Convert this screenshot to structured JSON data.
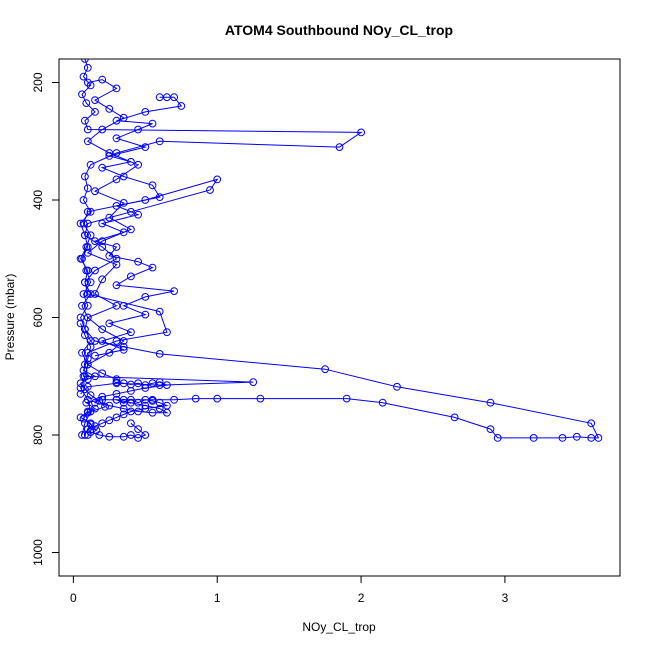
{
  "chart_data": {
    "type": "scatter",
    "title": "ATOM4 Southbound NOy_CL_trop",
    "xlabel": "NOy_CL_trop",
    "ylabel": "Pressure (mbar)",
    "xlim": [
      -0.1,
      3.8
    ],
    "ylim": [
      1040,
      160
    ],
    "y_reversed": true,
    "x_ticks": [
      0,
      1,
      2,
      3
    ],
    "y_ticks": [
      200,
      400,
      600,
      800,
      1000
    ],
    "marker": "open-circle",
    "line": true,
    "grid": false,
    "color": "#0000ff",
    "series": [
      {
        "points": [
          [
            0.08,
            800
          ],
          [
            0.1,
            790
          ],
          [
            0.12,
            780
          ],
          [
            0.05,
            770
          ],
          [
            0.1,
            760
          ],
          [
            0.15,
            755
          ],
          [
            0.09,
            745
          ],
          [
            0.2,
            740
          ],
          [
            0.35,
            740
          ],
          [
            0.55,
            740
          ],
          [
            0.7,
            740
          ],
          [
            0.85,
            738
          ],
          [
            1.0,
            738
          ],
          [
            1.3,
            738
          ],
          [
            1.9,
            738
          ],
          [
            2.15,
            745
          ],
          [
            2.65,
            770
          ],
          [
            2.9,
            790
          ],
          [
            2.95,
            805
          ],
          [
            3.2,
            805
          ],
          [
            3.4,
            805
          ],
          [
            3.5,
            803
          ],
          [
            3.6,
            805
          ],
          [
            3.65,
            805
          ],
          [
            3.6,
            780
          ],
          [
            2.9,
            745
          ],
          [
            2.25,
            718
          ],
          [
            1.75,
            688
          ],
          [
            0.6,
            662
          ],
          [
            0.35,
            650
          ],
          [
            0.15,
            640
          ],
          [
            0.08,
            620
          ],
          [
            0.1,
            600
          ],
          [
            0.06,
            580
          ],
          [
            0.12,
            560
          ],
          [
            0.08,
            540
          ],
          [
            0.1,
            520
          ],
          [
            0.05,
            500
          ],
          [
            0.09,
            480
          ],
          [
            0.12,
            460
          ],
          [
            0.07,
            440
          ],
          [
            0.1,
            420
          ],
          [
            0.5,
            400
          ],
          [
            1.0,
            365
          ],
          [
            0.95,
            383
          ],
          [
            0.4,
            420
          ],
          [
            0.1,
            440
          ],
          [
            0.08,
            460
          ],
          [
            0.2,
            480
          ],
          [
            0.3,
            500
          ],
          [
            0.15,
            520
          ],
          [
            0.08,
            540
          ],
          [
            0.1,
            560
          ],
          [
            0.6,
            590
          ],
          [
            0.65,
            625
          ],
          [
            0.3,
            640
          ],
          [
            0.1,
            660
          ],
          [
            0.08,
            680
          ],
          [
            0.07,
            700
          ],
          [
            1.25,
            710
          ],
          [
            0.6,
            715
          ],
          [
            0.3,
            712
          ],
          [
            0.1,
            718
          ],
          [
            0.05,
            730
          ]
        ]
      },
      {
        "points": [
          [
            0.08,
            160
          ],
          [
            0.1,
            175
          ],
          [
            0.07,
            190
          ],
          [
            0.12,
            205
          ],
          [
            0.06,
            220
          ],
          [
            0.09,
            235
          ],
          [
            0.15,
            250
          ],
          [
            0.08,
            265
          ],
          [
            0.1,
            280
          ],
          [
            2.0,
            285
          ],
          [
            1.85,
            310
          ],
          [
            0.6,
            300
          ],
          [
            0.3,
            320
          ],
          [
            0.12,
            340
          ],
          [
            0.08,
            360
          ],
          [
            0.1,
            380
          ],
          [
            0.07,
            400
          ],
          [
            0.12,
            420
          ],
          [
            0.05,
            440
          ],
          [
            0.08,
            460
          ],
          [
            0.1,
            480
          ],
          [
            0.06,
            500
          ],
          [
            0.09,
            520
          ],
          [
            0.12,
            540
          ],
          [
            0.07,
            560
          ],
          [
            0.1,
            580
          ],
          [
            0.05,
            600
          ],
          [
            0.08,
            620
          ],
          [
            0.12,
            640
          ],
          [
            0.06,
            660
          ],
          [
            0.1,
            680
          ],
          [
            0.08,
            700
          ],
          [
            0.05,
            720
          ],
          [
            0.1,
            740
          ],
          [
            0.12,
            760
          ],
          [
            0.08,
            780
          ],
          [
            0.06,
            800
          ]
        ]
      },
      {
        "points": [
          [
            0.6,
            225
          ],
          [
            0.65,
            225
          ],
          [
            0.7,
            225
          ],
          [
            0.75,
            240
          ],
          [
            0.5,
            250
          ],
          [
            0.3,
            265
          ],
          [
            0.55,
            270
          ],
          [
            0.45,
            280
          ],
          [
            0.3,
            295
          ],
          [
            0.5,
            310
          ],
          [
            0.25,
            325
          ],
          [
            0.4,
            335
          ],
          [
            0.2,
            345
          ],
          [
            0.35,
            360
          ],
          [
            0.55,
            375
          ],
          [
            0.6,
            395
          ],
          [
            0.3,
            410
          ],
          [
            0.45,
            425
          ],
          [
            0.2,
            440
          ],
          [
            0.35,
            455
          ],
          [
            0.15,
            470
          ],
          [
            0.3,
            480
          ],
          [
            0.25,
            495
          ],
          [
            0.45,
            505
          ],
          [
            0.55,
            515
          ],
          [
            0.4,
            530
          ],
          [
            0.3,
            545
          ],
          [
            0.7,
            555
          ],
          [
            0.5,
            565
          ],
          [
            0.35,
            580
          ],
          [
            0.5,
            595
          ],
          [
            0.25,
            610
          ],
          [
            0.4,
            625
          ],
          [
            0.2,
            640
          ],
          [
            0.35,
            655
          ],
          [
            0.15,
            665
          ]
        ]
      },
      {
        "points": [
          [
            0.3,
            740
          ],
          [
            0.35,
            745
          ],
          [
            0.4,
            740
          ],
          [
            0.45,
            745
          ],
          [
            0.5,
            740
          ],
          [
            0.55,
            742
          ],
          [
            0.6,
            745
          ],
          [
            0.65,
            750
          ],
          [
            0.5,
            755
          ],
          [
            0.4,
            760
          ],
          [
            0.35,
            765
          ],
          [
            0.3,
            770
          ],
          [
            0.25,
            775
          ],
          [
            0.2,
            780
          ],
          [
            0.15,
            785
          ],
          [
            0.1,
            790
          ],
          [
            0.12,
            795
          ],
          [
            0.18,
            800
          ],
          [
            0.25,
            803
          ],
          [
            0.35,
            803
          ],
          [
            0.4,
            800
          ],
          [
            0.45,
            805
          ],
          [
            0.5,
            800
          ],
          [
            0.45,
            790
          ],
          [
            0.4,
            780
          ]
        ]
      },
      {
        "points": [
          [
            0.3,
            710
          ],
          [
            0.35,
            712
          ],
          [
            0.4,
            714
          ],
          [
            0.45,
            712
          ],
          [
            0.5,
            715
          ],
          [
            0.55,
            712
          ],
          [
            0.6,
            710
          ],
          [
            0.65,
            715
          ],
          [
            0.5,
            720
          ],
          [
            0.4,
            725
          ],
          [
            0.3,
            730
          ],
          [
            0.2,
            735
          ],
          [
            0.15,
            745
          ],
          [
            0.25,
            750
          ],
          [
            0.35,
            755
          ],
          [
            0.45,
            760
          ],
          [
            0.55,
            762
          ],
          [
            0.65,
            762
          ],
          [
            0.6,
            755
          ],
          [
            0.5,
            750
          ],
          [
            0.4,
            745
          ],
          [
            0.3,
            740
          ]
        ]
      },
      {
        "points": [
          [
            0.1,
            200
          ],
          [
            0.2,
            195
          ],
          [
            0.3,
            210
          ],
          [
            0.15,
            230
          ],
          [
            0.25,
            245
          ],
          [
            0.35,
            260
          ],
          [
            0.2,
            280
          ],
          [
            0.1,
            300
          ],
          [
            0.25,
            320
          ],
          [
            0.45,
            340
          ],
          [
            0.3,
            365
          ],
          [
            0.15,
            385
          ],
          [
            0.35,
            405
          ],
          [
            0.25,
            430
          ],
          [
            0.4,
            450
          ],
          [
            0.2,
            470
          ],
          [
            0.1,
            490
          ],
          [
            0.3,
            510
          ],
          [
            0.2,
            535
          ],
          [
            0.15,
            560
          ],
          [
            0.3,
            580
          ],
          [
            0.1,
            600
          ],
          [
            0.2,
            620
          ],
          [
            0.35,
            640
          ],
          [
            0.25,
            660
          ],
          [
            0.1,
            680
          ],
          [
            0.2,
            695
          ],
          [
            0.3,
            705
          ]
        ]
      },
      {
        "points": [
          [
            0.05,
            610
          ],
          [
            0.08,
            630
          ],
          [
            0.12,
            650
          ],
          [
            0.1,
            670
          ],
          [
            0.07,
            690
          ],
          [
            0.15,
            700
          ],
          [
            0.1,
            705
          ],
          [
            0.05,
            712
          ],
          [
            0.08,
            722
          ],
          [
            0.12,
            732
          ],
          [
            0.18,
            742
          ],
          [
            0.22,
            752
          ],
          [
            0.1,
            762
          ],
          [
            0.07,
            772
          ],
          [
            0.12,
            782
          ],
          [
            0.16,
            792
          ],
          [
            0.1,
            800
          ]
        ]
      }
    ]
  }
}
